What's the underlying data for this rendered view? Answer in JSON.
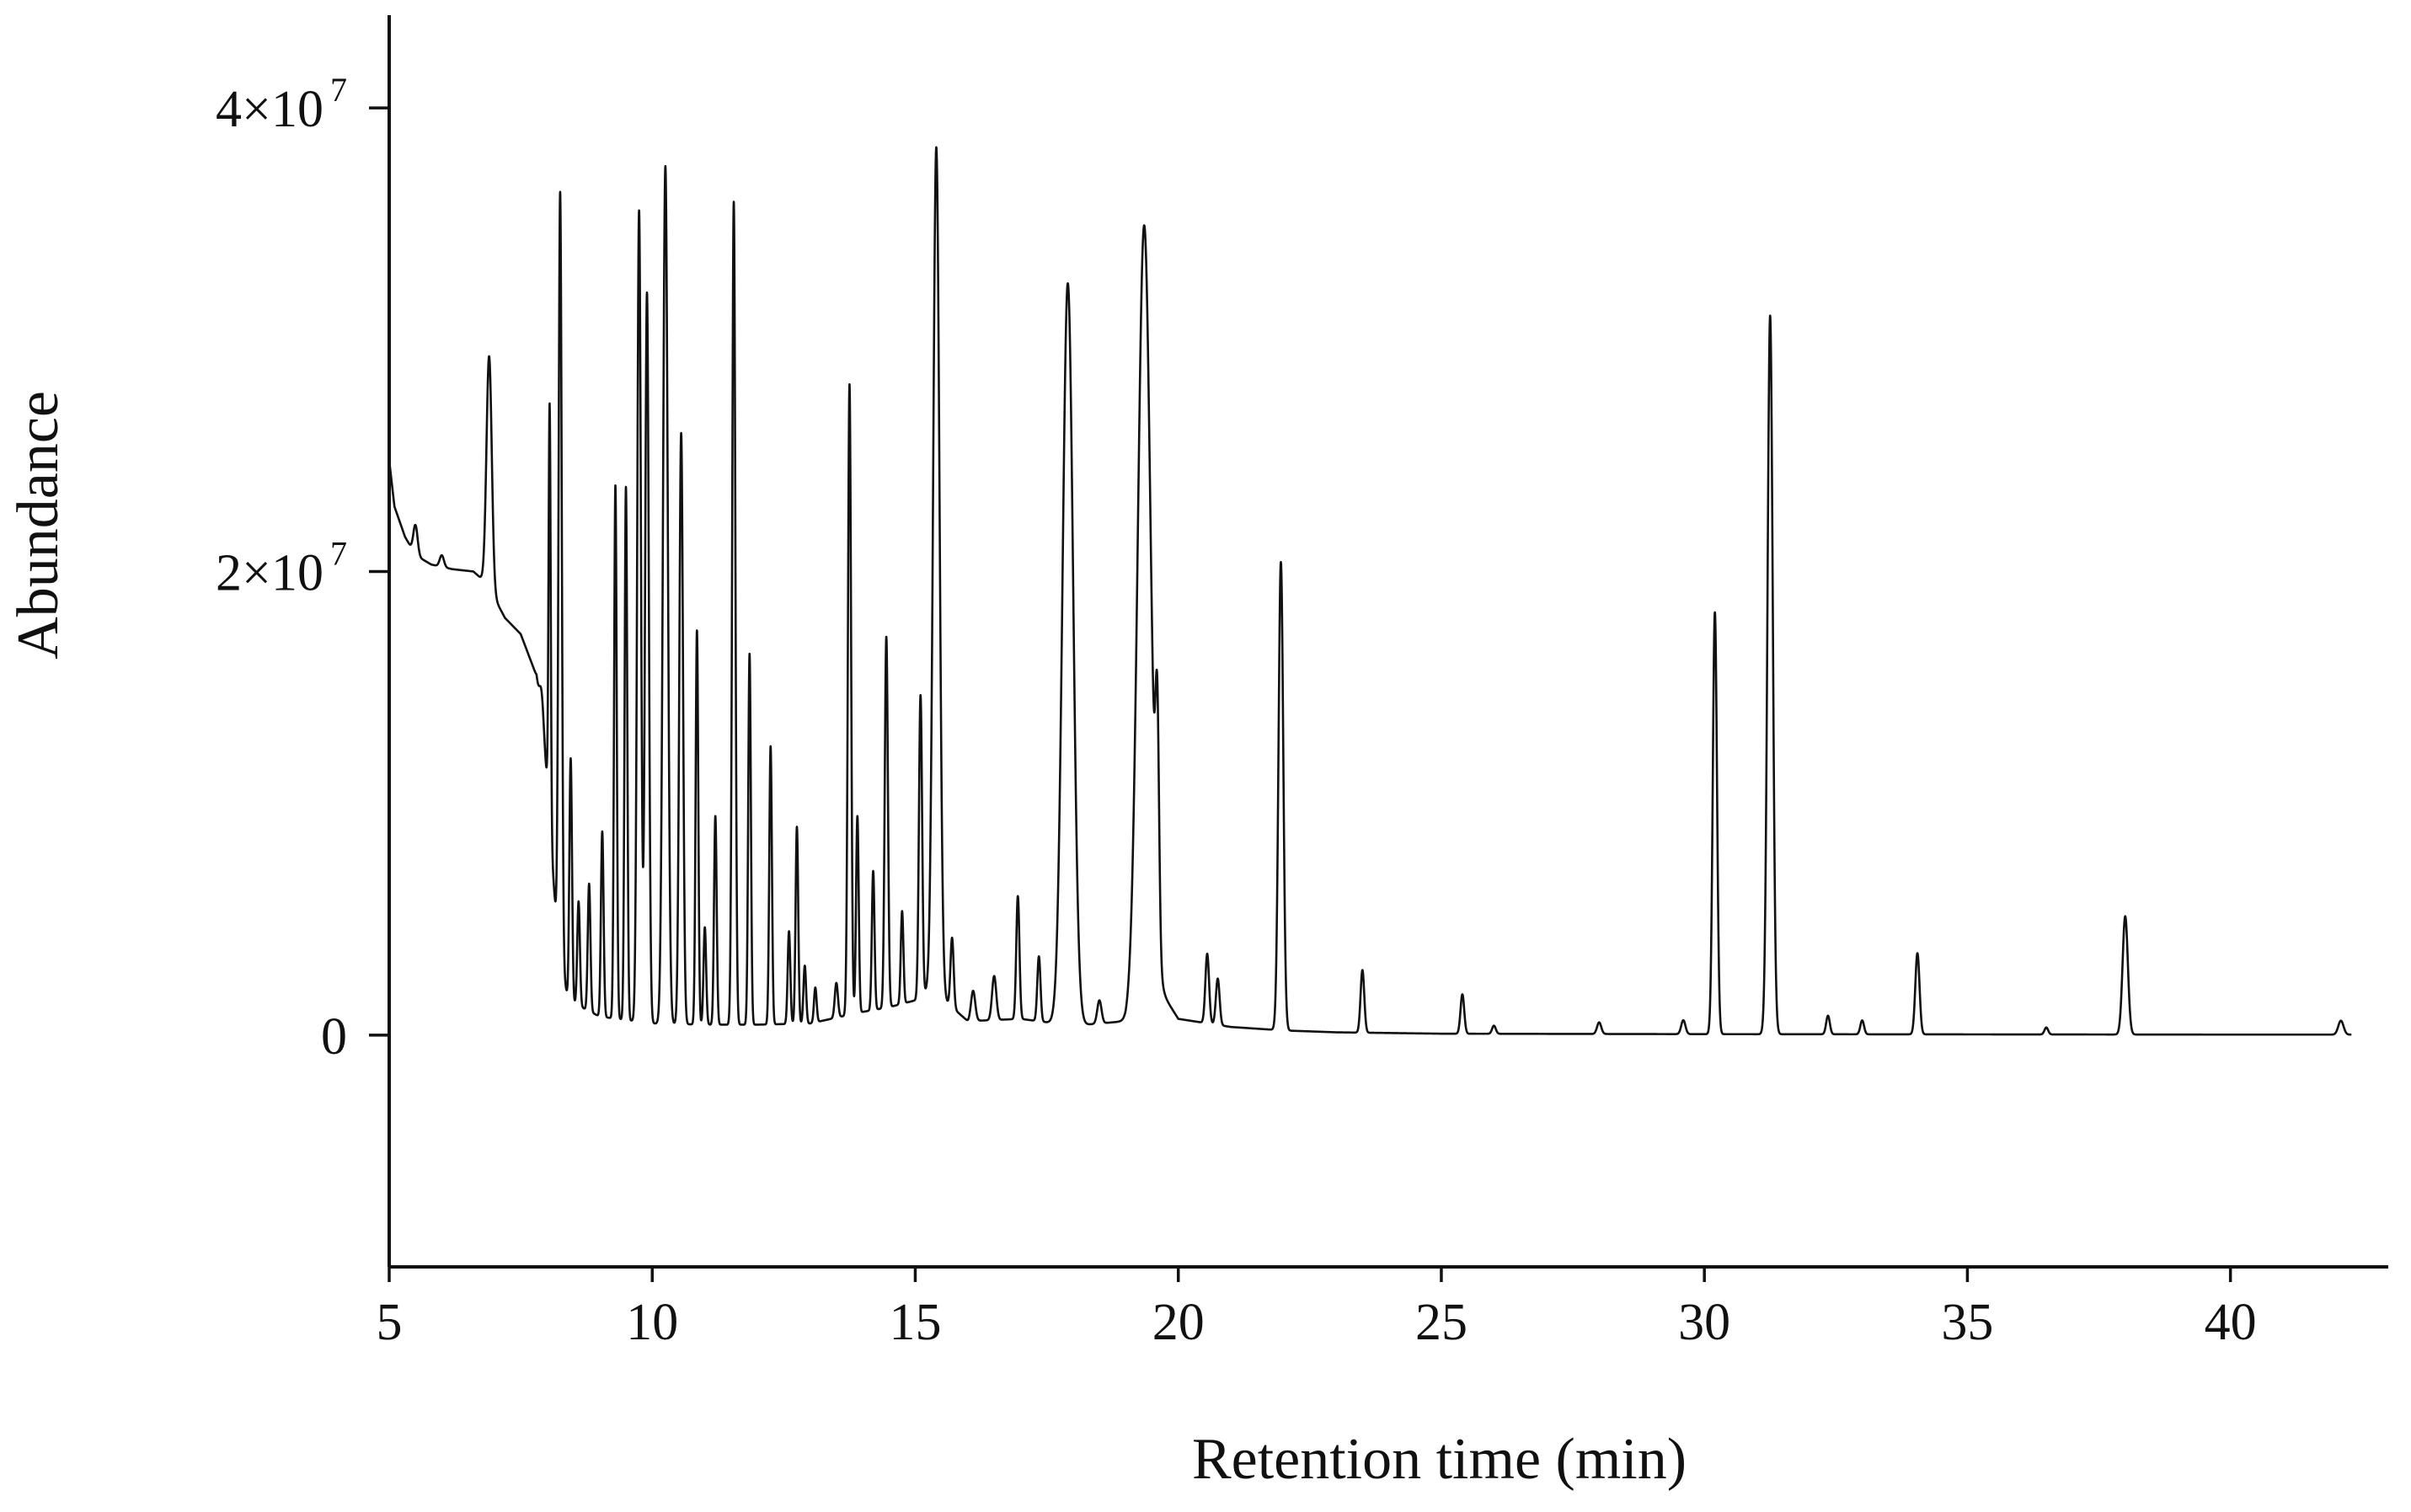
{
  "chart_data": {
    "type": "line",
    "title": "",
    "xlabel": "Retention time (min)",
    "ylabel": "Abundance",
    "xlim": [
      5,
      43
    ],
    "ylim": [
      -10000000,
      44000000
    ],
    "x_ticks": [
      5,
      10,
      15,
      20,
      25,
      30,
      35,
      40
    ],
    "y_ticks": [
      {
        "value": 0,
        "mantissa": "0",
        "exponent": ""
      },
      {
        "value": 20000000,
        "mantissa": "2×10",
        "exponent": "7"
      },
      {
        "value": 40000000,
        "mantissa": "4×10",
        "exponent": "7"
      }
    ],
    "grid": false,
    "legend": "none",
    "line_color": "#111111",
    "series": [
      {
        "baseline": [
          [
            5.0,
            24800000
          ],
          [
            5.1,
            22800000
          ],
          [
            5.3,
            21500000
          ],
          [
            5.5,
            20700000
          ],
          [
            5.8,
            20300000
          ],
          [
            6.2,
            20100000
          ],
          [
            6.6,
            20000000
          ],
          [
            6.85,
            19500000
          ],
          [
            7.2,
            18000000
          ],
          [
            7.5,
            17300000
          ],
          [
            7.8,
            15500000
          ],
          [
            8.0,
            11000000
          ],
          [
            8.2,
            4000000
          ],
          [
            8.4,
            1500000
          ],
          [
            9.0,
            800000
          ],
          [
            10.0,
            500000
          ],
          [
            11.0,
            450000
          ],
          [
            12.0,
            450000
          ],
          [
            13.0,
            500000
          ],
          [
            14.0,
            1000000
          ],
          [
            14.5,
            1200000
          ],
          [
            15.0,
            1500000
          ],
          [
            15.3,
            2000000
          ],
          [
            16.0,
            600000
          ],
          [
            17.0,
            700000
          ],
          [
            18.0,
            400000
          ],
          [
            19.0,
            600000
          ],
          [
            19.5,
            2500000
          ],
          [
            20.0,
            700000
          ],
          [
            21.0,
            350000
          ],
          [
            22.0,
            200000
          ],
          [
            23.0,
            120000
          ],
          [
            25.0,
            60000
          ],
          [
            30.0,
            40000
          ],
          [
            35.0,
            30000
          ],
          [
            40.0,
            20000
          ],
          [
            42.3,
            20000
          ]
        ],
        "peaks": [
          [
            5.5,
            1300000,
            0.04
          ],
          [
            6.0,
            500000,
            0.04
          ],
          [
            6.9,
            10000000,
            0.05
          ],
          [
            7.9,
            1500000,
            0.04
          ],
          [
            8.05,
            18000000,
            0.02
          ],
          [
            8.25,
            33000000,
            0.03
          ],
          [
            8.45,
            10500000,
            0.025
          ],
          [
            8.6,
            4500000,
            0.025
          ],
          [
            8.8,
            5500000,
            0.025
          ],
          [
            9.05,
            8000000,
            0.025
          ],
          [
            9.3,
            23000000,
            0.025
          ],
          [
            9.5,
            23000000,
            0.025
          ],
          [
            9.75,
            35000000,
            0.035
          ],
          [
            9.9,
            31500000,
            0.035
          ],
          [
            10.25,
            37000000,
            0.045
          ],
          [
            10.55,
            25500000,
            0.035
          ],
          [
            10.85,
            17000000,
            0.025
          ],
          [
            11.0,
            4200000,
            0.025
          ],
          [
            11.2,
            9000000,
            0.025
          ],
          [
            11.55,
            35500000,
            0.03
          ],
          [
            11.85,
            16000000,
            0.025
          ],
          [
            12.25,
            12000000,
            0.025
          ],
          [
            12.6,
            4000000,
            0.025
          ],
          [
            12.75,
            8500000,
            0.025
          ],
          [
            12.9,
            2500000,
            0.025
          ],
          [
            13.1,
            1500000,
            0.025
          ],
          [
            13.5,
            1500000,
            0.03
          ],
          [
            13.75,
            27200000,
            0.03
          ],
          [
            13.9,
            8500000,
            0.025
          ],
          [
            14.2,
            6000000,
            0.025
          ],
          [
            14.45,
            16000000,
            0.03
          ],
          [
            14.75,
            4000000,
            0.025
          ],
          [
            15.1,
            13000000,
            0.03
          ],
          [
            15.4,
            36500000,
            0.06
          ],
          [
            15.7,
            3000000,
            0.03
          ],
          [
            16.1,
            1300000,
            0.04
          ],
          [
            16.5,
            1900000,
            0.04
          ],
          [
            16.95,
            5300000,
            0.03
          ],
          [
            17.35,
            2800000,
            0.03
          ],
          [
            17.9,
            32000000,
            0.1
          ],
          [
            18.5,
            1000000,
            0.04
          ],
          [
            19.35,
            33000000,
            0.12
          ],
          [
            19.6,
            9500000,
            0.035
          ],
          [
            20.55,
            3000000,
            0.035
          ],
          [
            20.75,
            2000000,
            0.035
          ],
          [
            21.95,
            20200000,
            0.045
          ],
          [
            23.5,
            2700000,
            0.035
          ],
          [
            25.4,
            1700000,
            0.035
          ],
          [
            26.0,
            350000,
            0.035
          ],
          [
            28.0,
            500000,
            0.04
          ],
          [
            29.6,
            600000,
            0.04
          ],
          [
            30.2,
            18200000,
            0.04
          ],
          [
            31.25,
            31000000,
            0.05
          ],
          [
            32.35,
            800000,
            0.035
          ],
          [
            33.0,
            600000,
            0.035
          ],
          [
            34.05,
            3500000,
            0.04
          ],
          [
            36.5,
            300000,
            0.035
          ],
          [
            38.0,
            5100000,
            0.05
          ],
          [
            42.1,
            600000,
            0.05
          ]
        ]
      }
    ]
  }
}
